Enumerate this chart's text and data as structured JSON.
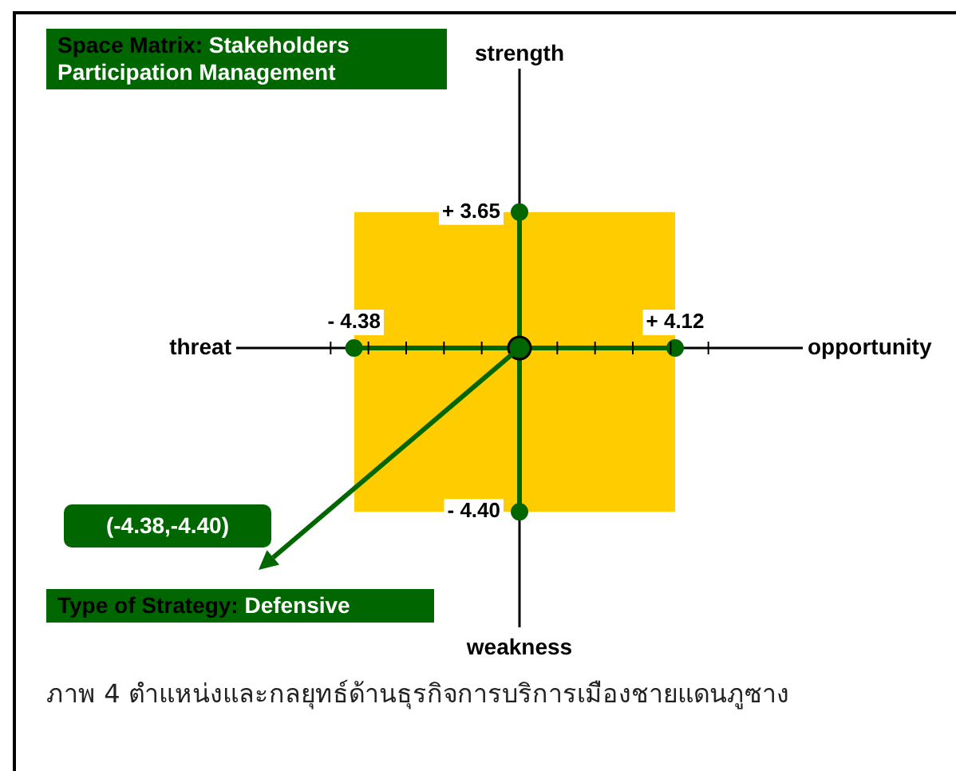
{
  "chart_data": {
    "type": "line",
    "title": "Space Matrix: Stakeholders Participation Management",
    "xlabel": "opportunity",
    "ylabel": "strength",
    "annotations": [
      "threat",
      "weakness",
      "(-4.38,-4.40)",
      "Type of Strategy: Defensive",
      "ภาพ 4  ตำแหน่งและกลยุทธ์ด้านธุรกิจการบริการเมืองชายแดนภูซาง"
    ],
    "series": [
      {
        "type": "area",
        "color": "#ffcc00",
        "x": [
          -4.38,
          4.12
        ],
        "values": [
          3.65,
          3.65
        ]
      },
      {
        "type": "area",
        "color": "#ffcc00",
        "x": [
          -4.38,
          4.12
        ],
        "values": [
          -4.4,
          -4.4
        ]
      },
      {
        "color": "#006600",
        "x": [
          -4.38,
          0,
          4.12
        ],
        "values": [
          0,
          0,
          0
        ],
        "marker": "circle"
      },
      {
        "color": "#006600",
        "x": [
          0,
          0,
          0
        ],
        "values": [
          3.65,
          0,
          -4.4
        ],
        "marker": "circle"
      },
      {
        "type": "scatter",
        "color": "#006600",
        "x": [
          0
        ],
        "values": [
          0
        ],
        "marker": "circle"
      }
    ],
    "xlim": [
      -7.5,
      7.5
    ],
    "ylim": [
      -7.5,
      7.5
    ],
    "xticks": [
      {
        "value": -4.38,
        "label": "- 4.38"
      },
      {
        "value": 4.12,
        "label": "+ 4.12"
      },
      {
        "value": -5,
        "label": null
      },
      {
        "value": -4,
        "label": null
      },
      {
        "value": -3,
        "label": null
      },
      {
        "value": -2,
        "label": null
      },
      {
        "value": -1,
        "label": null
      },
      {
        "value": 1,
        "label": null
      },
      {
        "value": 2,
        "label": null
      },
      {
        "value": 3,
        "label": null
      },
      {
        "value": 4,
        "label": null
      },
      {
        "value": 5,
        "label": null
      }
    ],
    "yticks": [
      {
        "value": 3.65,
        "label": "+ 3.65"
      },
      {
        "value": -4.4,
        "label": "- 4.40"
      }
    ],
    "line_style": "solid",
    "legend": false
  }
}
